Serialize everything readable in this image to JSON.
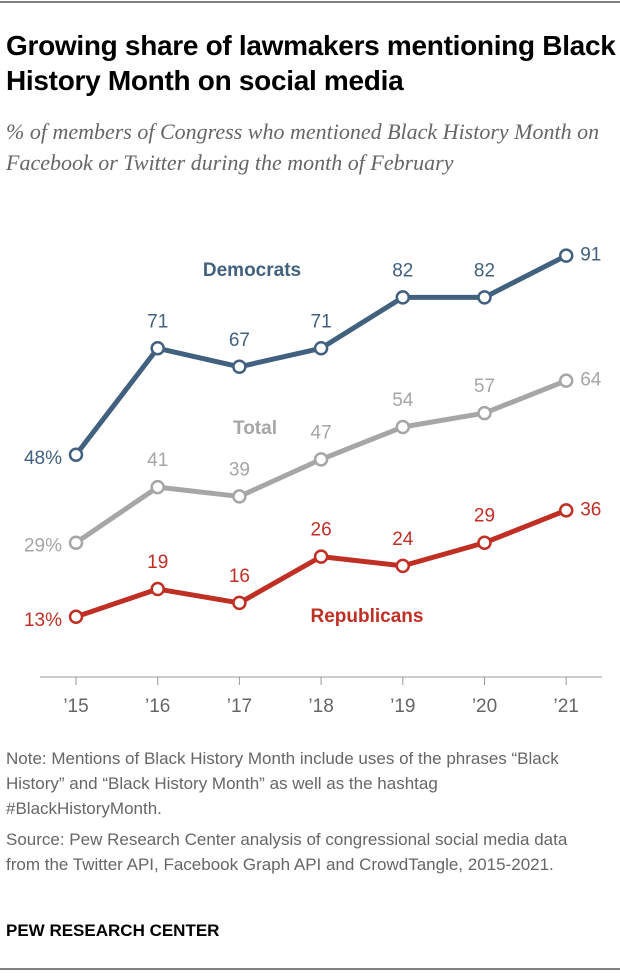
{
  "chart_data": {
    "type": "line",
    "title": "Growing share of lawmakers mentioning Black History Month on social media",
    "subtitle": "% of members of Congress who mentioned Black History Month on Facebook or Twitter during the month of February",
    "categories": [
      "’15",
      "’16",
      "’17",
      "’18",
      "’19",
      "’20",
      "’21"
    ],
    "series": [
      {
        "name": "Democrats",
        "color": "#41617f",
        "values": [
          48,
          71,
          67,
          71,
          82,
          82,
          91
        ],
        "value_labels": [
          "48%",
          "71",
          "67",
          "71",
          "82",
          "82",
          "91"
        ]
      },
      {
        "name": "Total",
        "color": "#a6a6a6",
        "values": [
          29,
          41,
          39,
          47,
          54,
          57,
          64
        ],
        "value_labels": [
          "29%",
          "41",
          "39",
          "47",
          "54",
          "57",
          "64"
        ]
      },
      {
        "name": "Republicans",
        "color": "#bf2f24",
        "values": [
          13,
          19,
          16,
          26,
          24,
          29,
          36
        ],
        "value_labels": [
          "13%",
          "19",
          "16",
          "26",
          "24",
          "29",
          "36"
        ]
      }
    ],
    "ylim": [
      0,
      100
    ],
    "note": "Note: Mentions of Black History Month include uses of the phrases “Black History” and “Black History Month” as well as the hashtag #BlackHistoryMonth.",
    "source": "Source: Pew Research Center analysis of congressional social media data from the Twitter API, Facebook Graph API and CrowdTangle, 2015-2021.",
    "footer": "PEW RESEARCH CENTER"
  }
}
